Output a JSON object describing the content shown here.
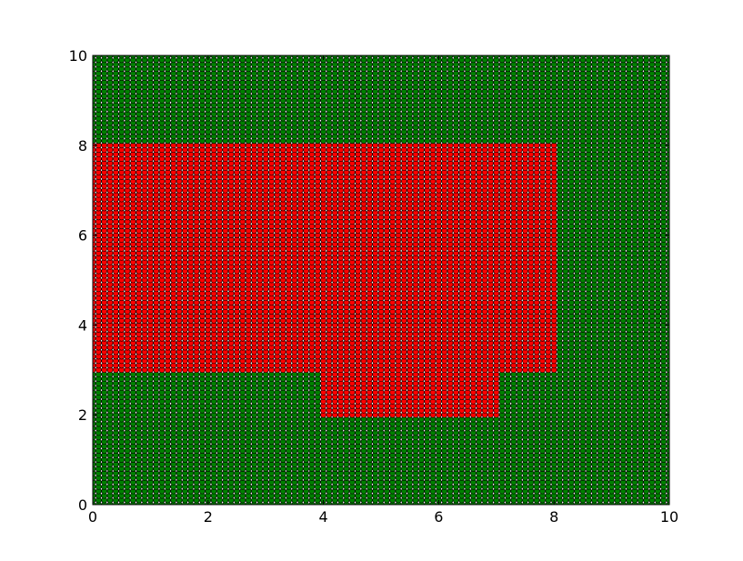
{
  "chart_data": {
    "type": "scatter",
    "title": "",
    "xlabel": "",
    "ylabel": "",
    "xlim": [
      0,
      10
    ],
    "ylim": [
      0,
      10
    ],
    "grid": false,
    "legend": "none",
    "xticks": [
      "0",
      "2",
      "4",
      "6",
      "8",
      "10"
    ],
    "yticks": [
      "0",
      "2",
      "4",
      "6",
      "8",
      "10"
    ],
    "point_lattice": {
      "x_start": 0,
      "x_stop": 10,
      "x_count": 101,
      "y_start": 0,
      "y_stop": 10,
      "y_count": 101,
      "marker": "circle",
      "edge_color": "#000000"
    },
    "series": [
      {
        "color": "#ff0000",
        "region": [
          [
            0,
            3
          ],
          [
            4,
            3
          ],
          [
            4,
            2
          ],
          [
            7,
            2
          ],
          [
            7,
            3
          ],
          [
            8,
            3
          ],
          [
            8,
            8
          ],
          [
            0,
            8
          ]
        ]
      },
      {
        "color": "#008000",
        "region": "all other lattice points"
      }
    ]
  }
}
